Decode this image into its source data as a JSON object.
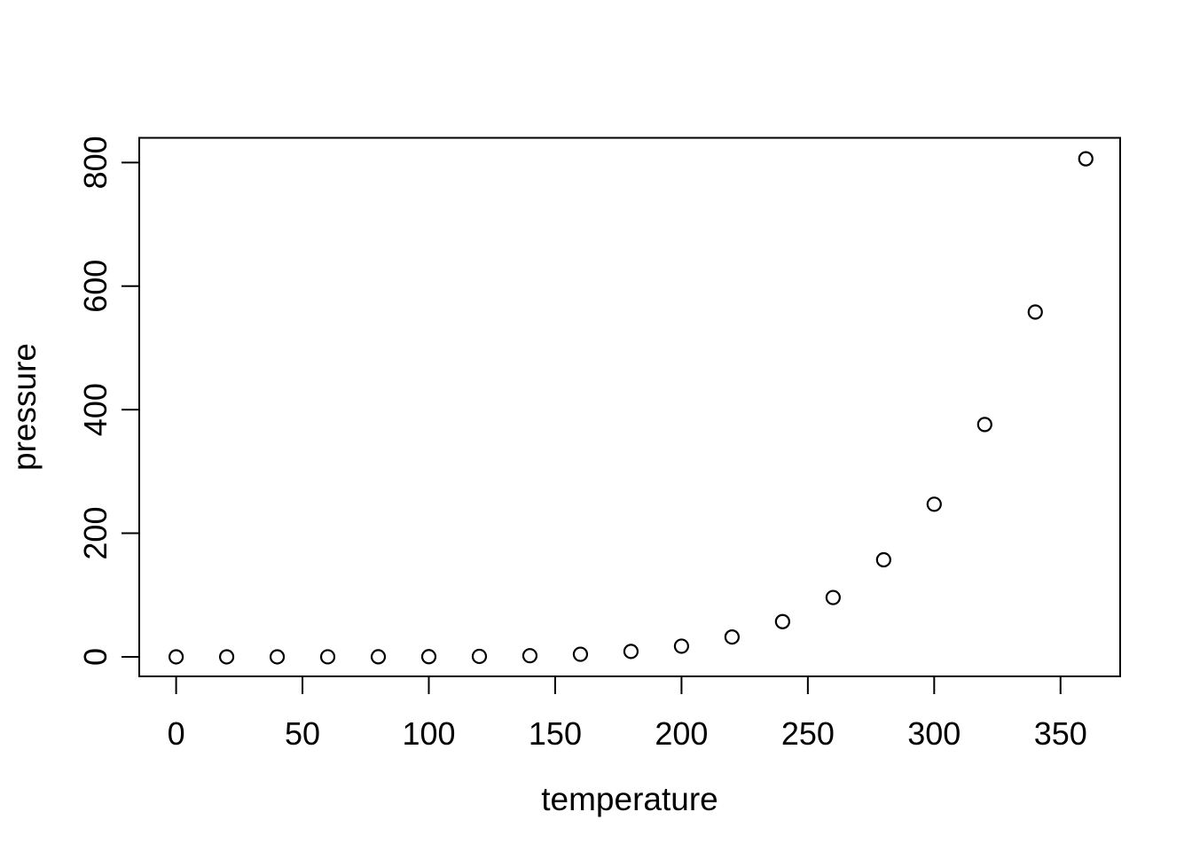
{
  "figure": {
    "background": "#ffffff",
    "foreground": "#000000"
  },
  "chart_data": {
    "type": "scatter",
    "title": "",
    "xlabel": "temperature",
    "ylabel": "pressure",
    "x": [
      0,
      20,
      40,
      60,
      80,
      100,
      120,
      140,
      160,
      180,
      200,
      220,
      240,
      260,
      280,
      300,
      320,
      340,
      360
    ],
    "y": [
      0.0002,
      0.0012,
      0.006,
      0.03,
      0.09,
      0.27,
      0.75,
      1.85,
      4.2,
      8.8,
      17.3,
      32.1,
      57,
      96,
      157,
      247,
      376,
      558,
      806
    ],
    "x_tick_values": [
      0,
      50,
      100,
      150,
      200,
      250,
      300,
      350
    ],
    "x_tick_labels": [
      "0",
      "50",
      "100",
      "150",
      "200",
      "250",
      "300",
      "350"
    ],
    "y_tick_values": [
      0,
      200,
      400,
      600,
      800
    ],
    "y_tick_labels": [
      "0",
      "200",
      "400",
      "600",
      "800"
    ],
    "xlim": [
      -14.6,
      373.6
    ],
    "ylim": [
      -31.6,
      839.9
    ],
    "grid": false,
    "legend": false,
    "marker": "open-circle",
    "marker_color": "#000000",
    "axis_color": "#000000",
    "background": "#ffffff"
  }
}
